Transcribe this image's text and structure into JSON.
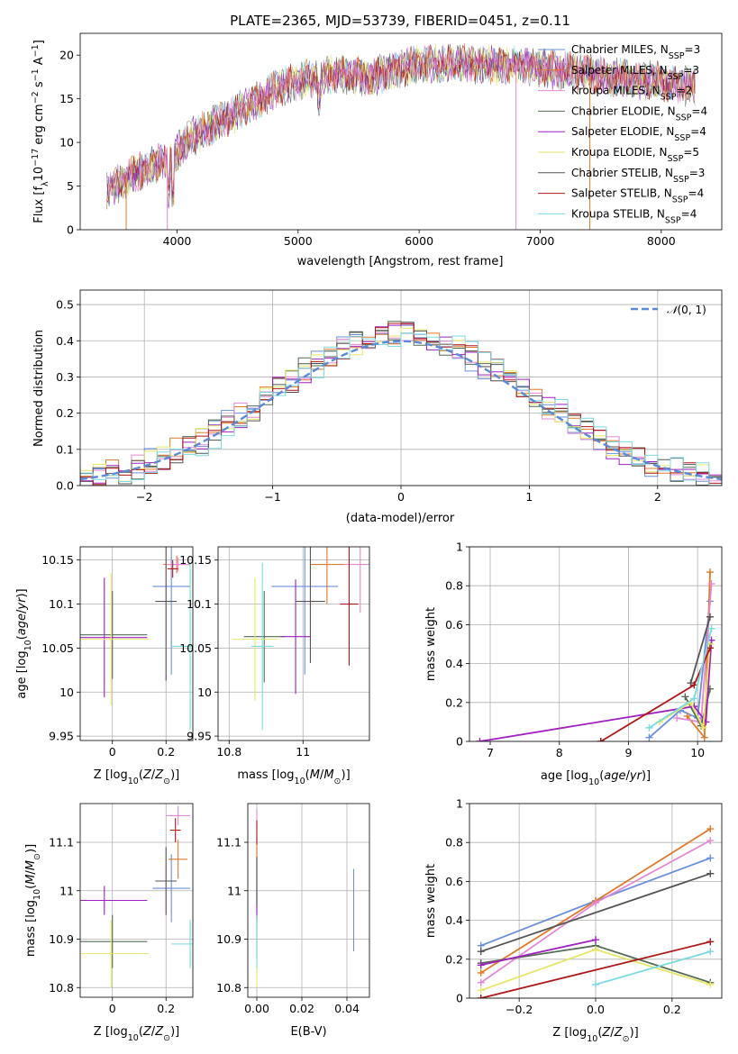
{
  "figure": {
    "title": "PLATE=2365, MJD=53739, FIBERID=0451, z=0.11"
  },
  "model_colors": [
    "#6a8fdb",
    "#e07a2a",
    "#e38ad6",
    "#556b55",
    "#a020c0",
    "#e6e66a",
    "#555555",
    "#b01818",
    "#7adbe0"
  ],
  "chart_data": [
    {
      "id": "spectrum",
      "type": "line",
      "title": "PLATE=2365, MJD=53739, FIBERID=0451, z=0.11",
      "xlabel": "wavelength [Angstrom, rest frame]",
      "ylabel": "Flux [fλ10⁻¹⁷ erg cm⁻² s⁻¹ A⁻¹]",
      "xlim": [
        3200,
        8500
      ],
      "ylim": [
        0,
        22.5
      ],
      "xticks": [
        4000,
        5000,
        6000,
        7000,
        8000
      ],
      "yticks": [
        0,
        5,
        10,
        15,
        20
      ],
      "grid": false,
      "legend_position": "top-right",
      "continuum_x": [
        3420,
        3600,
        3800,
        3950,
        4100,
        4300,
        4500,
        4800,
        5000,
        5300,
        5600,
        6000,
        6400,
        6800,
        7200,
        7600,
        8000,
        8280
      ],
      "continuum_y": [
        4.5,
        6.0,
        7.5,
        8.0,
        10.5,
        12.0,
        13.5,
        16.0,
        17.0,
        17.8,
        17.5,
        19.0,
        19.0,
        18.8,
        18.2,
        17.5,
        17.0,
        16.2
      ],
      "series": [
        {
          "name": "Chabrier MILES, N$_{SSP}$=3"
        },
        {
          "name": "Salpeter MILES, N$_{SSP}$=3"
        },
        {
          "name": "Kroupa MILES, N$_{SSP}$=2"
        },
        {
          "name": "Chabrier ELODIE, N$_{SSP}$=4"
        },
        {
          "name": "Salpeter ELODIE, N$_{SSP}$=4"
        },
        {
          "name": "Kroupa ELODIE, N$_{SSP}$=5"
        },
        {
          "name": "Chabrier STELIB, N$_{SSP}$=3"
        },
        {
          "name": "Salpeter STELIB, N$_{SSP}$=4"
        },
        {
          "name": "Kroupa STELIB, N$_{SSP}$=4"
        }
      ],
      "legend_labels": [
        {
          "pre": "Chabrier MILES, N",
          "sub": "SSP",
          "post": "=3"
        },
        {
          "pre": "Salpeter MILES, N",
          "sub": "SSP",
          "post": "=3"
        },
        {
          "pre": "Kroupa MILES, N",
          "sub": "SSP",
          "post": "=2"
        },
        {
          "pre": "Chabrier ELODIE, N",
          "sub": "SSP",
          "post": "=4"
        },
        {
          "pre": "Salpeter ELODIE, N",
          "sub": "SSP",
          "post": "=4"
        },
        {
          "pre": "Kroupa ELODIE, N",
          "sub": "SSP",
          "post": "=5"
        },
        {
          "pre": "Chabrier STELIB, N",
          "sub": "SSP",
          "post": "=3"
        },
        {
          "pre": "Salpeter STELIB, N",
          "sub": "SSP",
          "post": "=4"
        },
        {
          "pre": "Kroupa STELIB, N",
          "sub": "SSP",
          "post": "=4"
        }
      ]
    },
    {
      "id": "residuals",
      "type": "line",
      "xlabel": "(data-model)/error",
      "ylabel": "Normed distribution",
      "xlim": [
        -2.5,
        2.5
      ],
      "ylim": [
        0,
        0.54
      ],
      "xticks": [
        -2,
        -1,
        0,
        1,
        2
      ],
      "xtick_labels": [
        "−2",
        "−1",
        "0",
        "1",
        "2"
      ],
      "yticks": [
        0.0,
        0.1,
        0.2,
        0.3,
        0.4,
        0.5
      ],
      "ytick_labels": [
        "0.0",
        "0.1",
        "0.2",
        "0.3",
        "0.4",
        "0.5"
      ],
      "grid": true,
      "legend_position": "top-right",
      "reference_curve": {
        "name": "𝒩(0, 1)",
        "mean": 0,
        "sigma": 1,
        "style": "dashed"
      },
      "histogram_bin_width": 0.1
    },
    {
      "id": "age_vs_Z",
      "type": "scatter",
      "xlabel": "Z [log₁₀(Z/Z⊙)]",
      "ylabel": "age  [log₁₀(age/yr)]",
      "xlim": [
        -0.12,
        0.3
      ],
      "ylim": [
        9.945,
        10.165
      ],
      "xticks": [
        0.0,
        0.2
      ],
      "yticks": [
        9.95,
        10.0,
        10.05,
        10.1,
        10.15
      ],
      "grid": true,
      "points": [
        {
          "x": 0.22,
          "y": 10.12,
          "xerr": 0.07,
          "yerr": 0.1
        },
        {
          "x": 0.24,
          "y": 10.145,
          "xerr": 0.05,
          "yerr": 0.01
        },
        {
          "x": 0.245,
          "y": 10.145,
          "xerr": 0.045,
          "yerr": 0.008
        },
        {
          "x": 0.0,
          "y": 10.065,
          "xerr": 0.13,
          "yerr": 0.05
        },
        {
          "x": -0.03,
          "y": 10.062,
          "xerr": 0.16,
          "yerr": 0.068
        },
        {
          "x": -0.005,
          "y": 10.06,
          "xerr": 0.14,
          "yerr": 0.075
        },
        {
          "x": 0.2,
          "y": 10.103,
          "xerr": 0.04,
          "yerr": 0.09
        },
        {
          "x": 0.225,
          "y": 10.14,
          "xerr": 0.02,
          "yerr": 0.01
        },
        {
          "x": 0.29,
          "y": 10.052,
          "xerr": 0.07,
          "yerr": 0.095
        }
      ]
    },
    {
      "id": "age_vs_mass",
      "type": "scatter",
      "xlabel": "mass [log₁₀(M/M⊙)]",
      "ylabel": "",
      "xlim": [
        10.77,
        11.18
      ],
      "ylim": [
        9.945,
        10.165
      ],
      "xticks": [
        10.8,
        11.0
      ],
      "yticks": [
        9.95,
        10.0,
        10.05,
        10.1,
        10.15
      ],
      "grid": true,
      "points": [
        {
          "x": 11.005,
          "y": 10.12,
          "xerr": 0.09,
          "yerr": 0.1
        },
        {
          "x": 11.065,
          "y": 10.145,
          "xerr": 0.045,
          "yerr": 0.045
        },
        {
          "x": 11.155,
          "y": 10.145,
          "xerr": 0.045,
          "yerr": 0.055
        },
        {
          "x": 10.895,
          "y": 10.063,
          "xerr": 0.055,
          "yerr": 0.052
        },
        {
          "x": 10.98,
          "y": 10.063,
          "xerr": 0.04,
          "yerr": 0.065
        },
        {
          "x": 10.87,
          "y": 10.06,
          "xerr": 0.06,
          "yerr": 0.07
        },
        {
          "x": 11.02,
          "y": 10.103,
          "xerr": 0.04,
          "yerr": 0.07
        },
        {
          "x": 11.125,
          "y": 10.1,
          "xerr": 0.025,
          "yerr": 0.07
        },
        {
          "x": 10.89,
          "y": 10.052,
          "xerr": 0.03,
          "yerr": 0.095
        }
      ]
    },
    {
      "id": "weight_vs_age",
      "type": "line",
      "xlabel": "age  [log₁₀(age/yr)]",
      "ylabel": "mass weight",
      "xlim": [
        6.7,
        10.35
      ],
      "ylim": [
        0,
        1.0
      ],
      "xticks": [
        7,
        8,
        9,
        10
      ],
      "yticks": [
        0.0,
        0.2,
        0.4,
        0.6,
        0.8,
        1.0
      ],
      "grid": true,
      "series": [
        {
          "x": [
            9.3,
            9.75,
            10.0,
            10.18
          ],
          "y": [
            0.02,
            0.16,
            0.12,
            0.72
          ]
        },
        {
          "x": [
            9.85,
            10.1,
            10.18
          ],
          "y": [
            0.13,
            0.02,
            0.87
          ]
        },
        {
          "x": [
            9.7,
            10.05,
            10.2
          ],
          "y": [
            0.12,
            0.1,
            0.81
          ]
        },
        {
          "x": [
            9.82,
            10.05,
            10.18
          ],
          "y": [
            0.23,
            0.08,
            0.27
          ]
        },
        {
          "x": [
            6.85,
            9.95,
            10.12,
            10.2
          ],
          "y": [
            0.0,
            0.18,
            0.1,
            0.52
          ]
        },
        {
          "x": [
            9.45,
            9.9,
            10.08,
            10.18
          ],
          "y": [
            0.1,
            0.2,
            0.07,
            0.5
          ]
        },
        {
          "x": [
            9.9,
            10.18
          ],
          "y": [
            0.3,
            0.64
          ]
        },
        {
          "x": [
            8.6,
            9.95,
            10.18
          ],
          "y": [
            0.0,
            0.29,
            0.48
          ]
        },
        {
          "x": [
            9.3,
            9.95,
            10.2
          ],
          "y": [
            0.07,
            0.22,
            0.58
          ]
        }
      ]
    },
    {
      "id": "mass_vs_Z",
      "type": "scatter",
      "xlabel": "Z [log₁₀(Z/Z⊙)]",
      "ylabel": "mass [log₁₀(M/M⊙)]",
      "xlim": [
        -0.12,
        0.3
      ],
      "ylim": [
        10.78,
        11.18
      ],
      "xticks": [
        0.0,
        0.2
      ],
      "yticks": [
        10.8,
        10.9,
        11.0,
        11.1
      ],
      "grid": true,
      "points": [
        {
          "x": 0.22,
          "y": 11.005,
          "xerr": 0.07,
          "yerr": 0.07
        },
        {
          "x": 0.245,
          "y": 11.065,
          "xerr": 0.035,
          "yerr": 0.04
        },
        {
          "x": 0.245,
          "y": 11.155,
          "xerr": 0.045,
          "yerr": 0.02
        },
        {
          "x": 0.0,
          "y": 10.895,
          "xerr": 0.13,
          "yerr": 0.055
        },
        {
          "x": -0.03,
          "y": 10.98,
          "xerr": 0.16,
          "yerr": 0.03
        },
        {
          "x": -0.005,
          "y": 10.87,
          "xerr": 0.14,
          "yerr": 0.07
        },
        {
          "x": 0.2,
          "y": 11.02,
          "xerr": 0.04,
          "yerr": 0.07
        },
        {
          "x": 0.235,
          "y": 11.125,
          "xerr": 0.02,
          "yerr": 0.025
        },
        {
          "x": 0.29,
          "y": 10.89,
          "xerr": 0.07,
          "yerr": 0.05
        }
      ]
    },
    {
      "id": "mass_vs_ebv",
      "type": "scatter",
      "xlabel": "E(B-V)",
      "ylabel": "",
      "xlim": [
        -0.004,
        0.05
      ],
      "ylim": [
        10.78,
        11.18
      ],
      "xticks": [
        0.0,
        0.02,
        0.04
      ],
      "xtick_labels": [
        "0.00",
        "0.02",
        "0.04"
      ],
      "yticks": [
        10.8,
        10.9,
        11.0,
        11.1
      ],
      "grid": true,
      "points": [
        {
          "x": 0.0,
          "y": 11.0,
          "yerr": 0.09
        },
        {
          "x": 0.0,
          "y": 11.06,
          "yerr": 0.05
        },
        {
          "x": 0.0,
          "y": 11.15,
          "yerr": 0.02
        },
        {
          "x": 0.0,
          "y": 10.9,
          "yerr": 0.04
        },
        {
          "x": 0.0,
          "y": 10.98,
          "yerr": 0.03
        },
        {
          "x": 0.0,
          "y": 10.87,
          "yerr": 0.07
        },
        {
          "x": 0.0,
          "y": 11.02,
          "yerr": 0.05
        },
        {
          "x": 0.0,
          "y": 11.12,
          "yerr": 0.025
        },
        {
          "x": 0.0,
          "y": 10.89,
          "yerr": 0.05
        },
        {
          "x": 0.043,
          "y": 10.96,
          "yerr": 0.085
        }
      ]
    },
    {
      "id": "weight_vs_Z",
      "type": "line",
      "xlabel": "Z [log₁₀(Z/Z⊙)]",
      "ylabel": "mass weight",
      "xlim": [
        -0.33,
        0.33
      ],
      "ylim": [
        0,
        1.0
      ],
      "xticks": [
        -0.2,
        0.0,
        0.2
      ],
      "xtick_labels": [
        "−0.2",
        "0.0",
        "0.2"
      ],
      "yticks": [
        0.0,
        0.2,
        0.4,
        0.6,
        0.8,
        1.0
      ],
      "grid": true,
      "series": [
        {
          "x": [
            -0.3,
            0.0,
            0.3
          ],
          "y": [
            0.27,
            0.5,
            0.72
          ]
        },
        {
          "x": [
            -0.3,
            0.0,
            0.3
          ],
          "y": [
            0.13,
            0.5,
            0.87
          ]
        },
        {
          "x": [
            -0.3,
            0.0,
            0.3
          ],
          "y": [
            0.08,
            0.49,
            0.81
          ]
        },
        {
          "x": [
            -0.3,
            0.0,
            0.3
          ],
          "y": [
            0.18,
            0.27,
            0.08
          ]
        },
        {
          "x": [
            -0.3,
            0.0
          ],
          "y": [
            0.17,
            0.3
          ]
        },
        {
          "x": [
            -0.3,
            0.0,
            0.3
          ],
          "y": [
            0.04,
            0.25,
            0.07
          ]
        },
        {
          "x": [
            -0.3,
            0.3
          ],
          "y": [
            0.24,
            0.64
          ]
        },
        {
          "x": [
            -0.3,
            0.3
          ],
          "y": [
            0.0,
            0.29
          ]
        },
        {
          "x": [
            0.0,
            0.3
          ],
          "y": [
            0.07,
            0.24
          ]
        }
      ]
    }
  ]
}
